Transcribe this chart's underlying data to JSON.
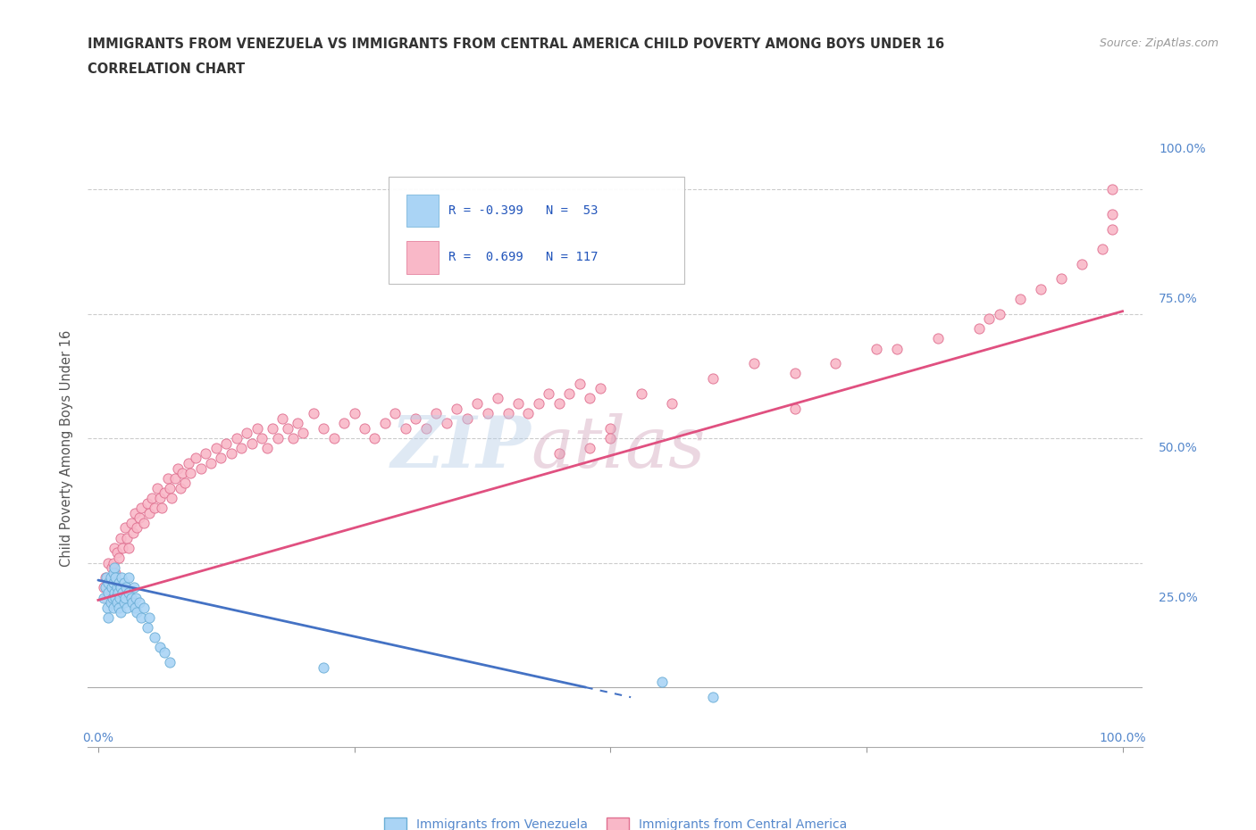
{
  "title_line1": "IMMIGRANTS FROM VENEZUELA VS IMMIGRANTS FROM CENTRAL AMERICA CHILD POVERTY AMONG BOYS UNDER 16",
  "title_line2": "CORRELATION CHART",
  "source": "Source: ZipAtlas.com",
  "ylabel": "Child Poverty Among Boys Under 16",
  "xlim": [
    -0.01,
    1.02
  ],
  "ylim": [
    -0.12,
    1.08
  ],
  "xticks": [
    0.0,
    0.25,
    0.5,
    0.75,
    1.0
  ],
  "yticks": [
    0.0,
    0.25,
    0.5,
    0.75,
    1.0
  ],
  "xticklabels": [
    "0.0%",
    "",
    "",
    "",
    "100.0%"
  ],
  "yticklabels_right": [
    "100.0%",
    "75.0%",
    "50.0%",
    "25.0%",
    ""
  ],
  "grid_color": "#cccccc",
  "background_color": "#ffffff",
  "venezuela_color": "#aad4f5",
  "venezuela_edge_color": "#6baed6",
  "central_america_color": "#f9b8c8",
  "central_america_edge_color": "#e07090",
  "venezuela_R": -0.399,
  "venezuela_N": 53,
  "central_america_R": 0.699,
  "central_america_N": 117,
  "venezuela_trend_color": "#4472c4",
  "central_america_trend_color": "#e05080",
  "watermark_color_ZIP": "#b8cfe8",
  "watermark_color_atlas": "#d4a8be",
  "legend_label_1": "Immigrants from Venezuela",
  "legend_label_2": "Immigrants from Central America",
  "venezuela_scatter_x": [
    0.005,
    0.007,
    0.008,
    0.009,
    0.01,
    0.01,
    0.01,
    0.012,
    0.012,
    0.013,
    0.014,
    0.015,
    0.015,
    0.015,
    0.016,
    0.016,
    0.017,
    0.017,
    0.018,
    0.018,
    0.019,
    0.02,
    0.02,
    0.021,
    0.022,
    0.022,
    0.023,
    0.024,
    0.025,
    0.025,
    0.026,
    0.027,
    0.028,
    0.03,
    0.03,
    0.032,
    0.033,
    0.035,
    0.036,
    0.037,
    0.038,
    0.04,
    0.042,
    0.045,
    0.048,
    0.05,
    0.055,
    0.06,
    0.065,
    0.07,
    0.22,
    0.55,
    0.6
  ],
  "venezuela_scatter_y": [
    0.18,
    0.2,
    0.22,
    0.16,
    0.19,
    0.21,
    0.14,
    0.22,
    0.17,
    0.2,
    0.18,
    0.23,
    0.16,
    0.21,
    0.19,
    0.24,
    0.18,
    0.22,
    0.17,
    0.2,
    0.19,
    0.21,
    0.16,
    0.18,
    0.2,
    0.15,
    0.22,
    0.19,
    0.17,
    0.21,
    0.18,
    0.2,
    0.16,
    0.19,
    0.22,
    0.18,
    0.17,
    0.2,
    0.16,
    0.18,
    0.15,
    0.17,
    0.14,
    0.16,
    0.12,
    0.14,
    0.1,
    0.08,
    0.07,
    0.05,
    0.04,
    0.01,
    -0.02
  ],
  "central_america_scatter_x": [
    0.005,
    0.007,
    0.008,
    0.01,
    0.012,
    0.013,
    0.015,
    0.016,
    0.017,
    0.018,
    0.02,
    0.022,
    0.024,
    0.026,
    0.028,
    0.03,
    0.032,
    0.034,
    0.036,
    0.038,
    0.04,
    0.042,
    0.045,
    0.048,
    0.05,
    0.052,
    0.055,
    0.058,
    0.06,
    0.062,
    0.065,
    0.068,
    0.07,
    0.072,
    0.075,
    0.078,
    0.08,
    0.082,
    0.085,
    0.088,
    0.09,
    0.095,
    0.1,
    0.105,
    0.11,
    0.115,
    0.12,
    0.125,
    0.13,
    0.135,
    0.14,
    0.145,
    0.15,
    0.155,
    0.16,
    0.165,
    0.17,
    0.175,
    0.18,
    0.185,
    0.19,
    0.195,
    0.2,
    0.21,
    0.22,
    0.23,
    0.24,
    0.25,
    0.26,
    0.27,
    0.28,
    0.29,
    0.3,
    0.31,
    0.32,
    0.33,
    0.34,
    0.35,
    0.36,
    0.37,
    0.38,
    0.39,
    0.4,
    0.41,
    0.42,
    0.43,
    0.44,
    0.45,
    0.46,
    0.47,
    0.48,
    0.49,
    0.5,
    0.53,
    0.56,
    0.6,
    0.64,
    0.68,
    0.72,
    0.76,
    0.78,
    0.82,
    0.86,
    0.87,
    0.88,
    0.9,
    0.92,
    0.94,
    0.96,
    0.98,
    0.99,
    0.99,
    0.99,
    0.68,
    0.5,
    0.48,
    0.45
  ],
  "central_america_scatter_y": [
    0.2,
    0.22,
    0.18,
    0.25,
    0.22,
    0.24,
    0.25,
    0.28,
    0.23,
    0.27,
    0.26,
    0.3,
    0.28,
    0.32,
    0.3,
    0.28,
    0.33,
    0.31,
    0.35,
    0.32,
    0.34,
    0.36,
    0.33,
    0.37,
    0.35,
    0.38,
    0.36,
    0.4,
    0.38,
    0.36,
    0.39,
    0.42,
    0.4,
    0.38,
    0.42,
    0.44,
    0.4,
    0.43,
    0.41,
    0.45,
    0.43,
    0.46,
    0.44,
    0.47,
    0.45,
    0.48,
    0.46,
    0.49,
    0.47,
    0.5,
    0.48,
    0.51,
    0.49,
    0.52,
    0.5,
    0.48,
    0.52,
    0.5,
    0.54,
    0.52,
    0.5,
    0.53,
    0.51,
    0.55,
    0.52,
    0.5,
    0.53,
    0.55,
    0.52,
    0.5,
    0.53,
    0.55,
    0.52,
    0.54,
    0.52,
    0.55,
    0.53,
    0.56,
    0.54,
    0.57,
    0.55,
    0.58,
    0.55,
    0.57,
    0.55,
    0.57,
    0.59,
    0.57,
    0.59,
    0.61,
    0.58,
    0.6,
    0.52,
    0.59,
    0.57,
    0.62,
    0.65,
    0.63,
    0.65,
    0.68,
    0.68,
    0.7,
    0.72,
    0.74,
    0.75,
    0.78,
    0.8,
    0.82,
    0.85,
    0.88,
    0.92,
    0.95,
    1.0,
    0.56,
    0.5,
    0.48,
    0.47
  ],
  "ven_trend_x": [
    0.0,
    0.52
  ],
  "ven_trend_y": [
    0.215,
    -0.02
  ],
  "ca_trend_x": [
    0.0,
    1.0
  ],
  "ca_trend_y": [
    0.175,
    0.755
  ]
}
